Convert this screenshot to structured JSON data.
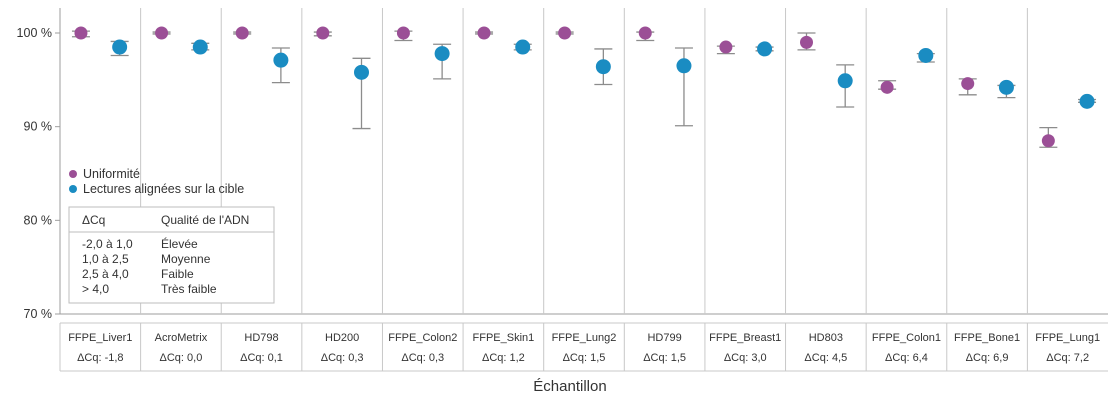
{
  "chart_data": {
    "type": "scatter",
    "title": "",
    "xlabel": "Échantillon",
    "ylabel": "",
    "ylim": [
      70,
      100
    ],
    "yticks": [
      "70 %",
      "80 %",
      "90 %",
      "100 %"
    ],
    "grid": false,
    "legend_placement": "left, inside panels",
    "categories": [
      {
        "name": "FFPE_Liver1",
        "dcq": "ΔCq: -1,8"
      },
      {
        "name": "AcroMetrix",
        "dcq": "ΔCq: 0,0"
      },
      {
        "name": "HD798",
        "dcq": "ΔCq: 0,1"
      },
      {
        "name": "HD200",
        "dcq": "ΔCq: 0,3"
      },
      {
        "name": "FFPE_Colon2",
        "dcq": "ΔCq: 0,3"
      },
      {
        "name": "FFPE_Skin1",
        "dcq": "ΔCq: 1,2"
      },
      {
        "name": "FFPE_Lung2",
        "dcq": "ΔCq: 1,5"
      },
      {
        "name": "HD799",
        "dcq": "ΔCq: 1,5"
      },
      {
        "name": "FFPE_Breast1",
        "dcq": "ΔCq: 3,0"
      },
      {
        "name": "HD803",
        "dcq": "ΔCq: 4,5"
      },
      {
        "name": "FFPE_Colon1",
        "dcq": "ΔCq: 6,4"
      },
      {
        "name": "FFPE_Bone1",
        "dcq": "ΔCq: 6,9"
      },
      {
        "name": "FFPE_Lung1",
        "dcq": "ΔCq: 7,2"
      }
    ],
    "series": [
      {
        "name": "Uniformité",
        "color": "#9b4f96",
        "values": [
          100.0,
          100.0,
          100.0,
          100.0,
          100.0,
          100.0,
          100.0,
          100.0,
          98.5,
          99.0,
          94.2,
          94.6,
          88.5
        ],
        "err_low": [
          99.6,
          99.9,
          99.9,
          99.7,
          99.2,
          99.9,
          99.9,
          99.2,
          97.8,
          98.2,
          94.0,
          93.4,
          87.8
        ],
        "err_high": [
          100.2,
          100.1,
          100.1,
          100.1,
          100.2,
          100.1,
          100.1,
          100.1,
          98.6,
          100.0,
          94.9,
          95.1,
          89.9
        ]
      },
      {
        "name": "Lectures alignées sur la cible",
        "color": "#1a8cc2",
        "values": [
          98.5,
          98.5,
          97.1,
          95.8,
          97.8,
          98.5,
          96.4,
          96.5,
          98.3,
          94.9,
          97.6,
          94.2,
          92.7
        ],
        "err_low": [
          97.6,
          98.2,
          94.7,
          89.8,
          95.1,
          98.2,
          94.5,
          90.1,
          98.1,
          92.1,
          96.9,
          93.1,
          92.6
        ],
        "err_high": [
          99.1,
          98.9,
          98.4,
          97.3,
          98.8,
          98.8,
          98.3,
          98.4,
          98.5,
          96.6,
          97.8,
          94.4,
          92.9
        ]
      }
    ],
    "legend_table": {
      "header": [
        "ΔCq",
        "Qualité de l'ADN"
      ],
      "rows": [
        [
          "-2,0 à 1,0",
          "Élevée"
        ],
        [
          "1,0 à 2,5",
          "Moyenne"
        ],
        [
          "2,5 à 4,0",
          "Faible"
        ],
        [
          "> 4,0",
          "Très faible"
        ]
      ]
    }
  }
}
